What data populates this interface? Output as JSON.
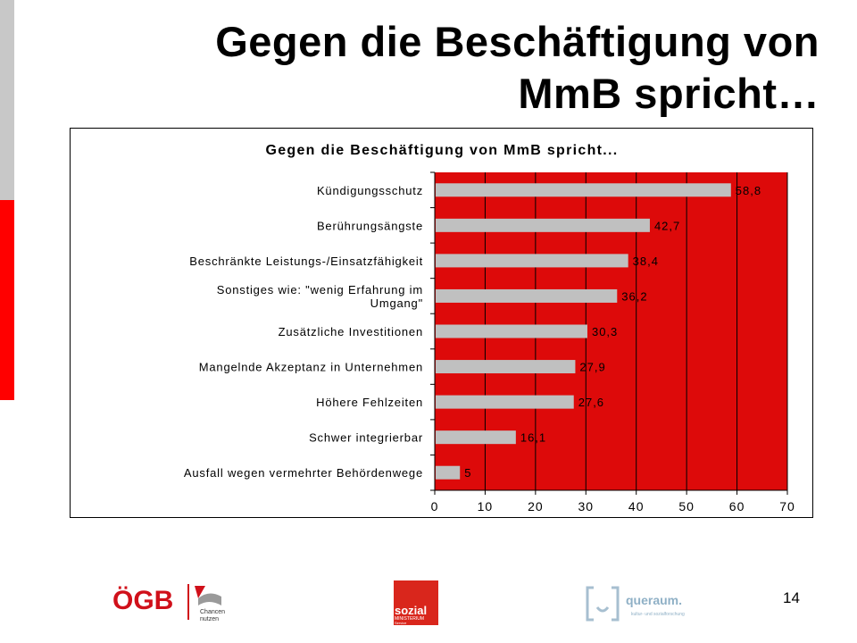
{
  "slide": {
    "title": "Gegen die Beschäftigung von MmB spricht…",
    "page_number": "14"
  },
  "logos": {
    "oegb_text": "ÖGB",
    "oegb_tagline_1": "Chancen",
    "oegb_tagline_2": "nutzen",
    "sozial_text": "sozial",
    "sozial_sub_1": "MINISTERIUM",
    "sozial_sub_2": "Service",
    "queraum_text": "queraum.",
    "queraum_sub": "kultur- und sozialforschung"
  },
  "colors": {
    "plot_background": "#dd0a0a",
    "bar": "#c0c0c0",
    "side_red": "#ff0000",
    "side_gray": "#c8c8c8"
  },
  "chart_data": {
    "type": "bar",
    "orientation": "horizontal",
    "title": "Gegen die Beschäftigung von MmB spricht...",
    "categories": [
      "Kündigungsschutz",
      "Berührungsängste",
      "Beschränkte Leistungs-/Einsatzfähigkeit",
      "Sonstiges wie: \"wenig Erfahrung im Umgang\"",
      "Zusätzliche Investitionen",
      "Mangelnde Akzeptanz in Unternehmen",
      "Höhere Fehlzeiten",
      "Schwer integrierbar",
      "Ausfall wegen vermehrter Behördenwege"
    ],
    "category_lines": [
      [
        "Kündigungsschutz"
      ],
      [
        "Berührungsängste"
      ],
      [
        "Beschränkte Leistungs-/Einsatzfähigkeit"
      ],
      [
        "Sonstiges wie: \"wenig Erfahrung im",
        "Umgang\""
      ],
      [
        "Zusätzliche Investitionen"
      ],
      [
        "Mangelnde Akzeptanz in Unternehmen"
      ],
      [
        "Höhere Fehlzeiten"
      ],
      [
        "Schwer integrierbar"
      ],
      [
        "Ausfall wegen vermehrter Behördenwege"
      ]
    ],
    "values": [
      58.8,
      42.7,
      38.4,
      36.2,
      30.3,
      27.9,
      27.6,
      16.1,
      5
    ],
    "value_labels": [
      "58,8",
      "42,7",
      "38,4",
      "36,2",
      "30,3",
      "27,9",
      "27,6",
      "16,1",
      "5"
    ],
    "xlim": [
      0,
      70
    ],
    "xticks": [
      0,
      10,
      20,
      30,
      40,
      50,
      60,
      70
    ],
    "grid": true,
    "legend": "none"
  }
}
